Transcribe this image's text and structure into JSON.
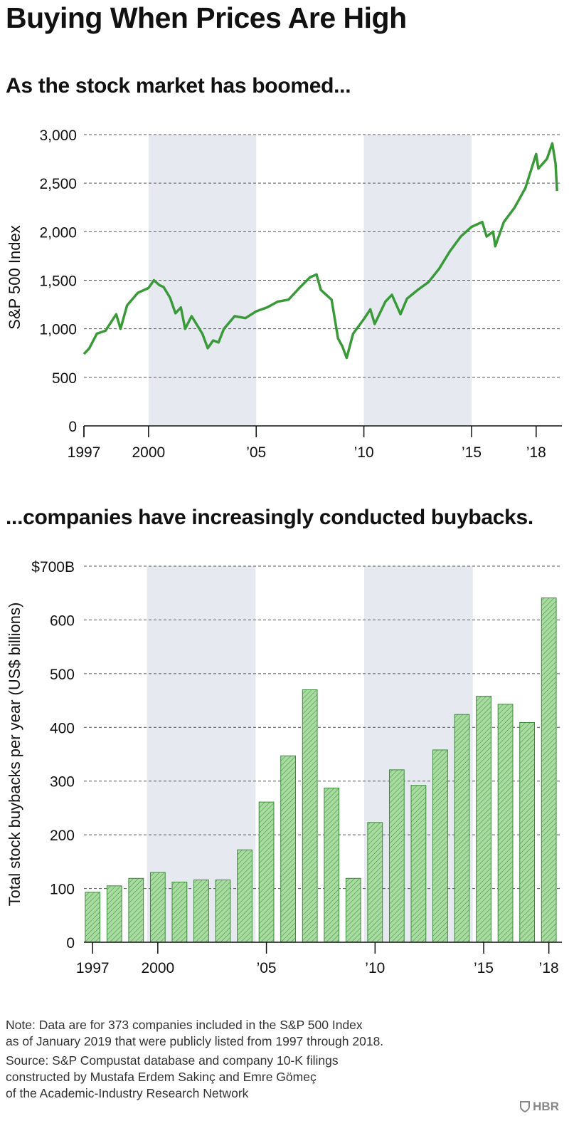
{
  "title": "Buying When Prices Are High",
  "subtitle_top": "As the stock market has boomed...",
  "subtitle_bottom": "...companies have increasingly conducted buybacks.",
  "colors": {
    "line": "#3a9a3a",
    "bar_fill": "#a8dba0",
    "bar_stroke": "#3c8a3c",
    "shade": "#e6eaf0",
    "grid": "#555555"
  },
  "shaded_periods": [
    [
      2000,
      2005
    ],
    [
      2010,
      2015
    ]
  ],
  "x_tick_labels": [
    "1997",
    "2000",
    "’05",
    "’10",
    "’15",
    "’18"
  ],
  "x_tick_years": [
    1997,
    2000,
    2005,
    2010,
    2015,
    2018
  ],
  "chart_data": [
    {
      "type": "line",
      "ylabel": "S&P 500 Index",
      "ylim": [
        0,
        3000
      ],
      "y_ticks": [
        0,
        500,
        1000,
        1500,
        2000,
        2500,
        3000
      ],
      "y_tick_labels": [
        "0",
        "500",
        "1,000",
        "1,500",
        "2,000",
        "2,500",
        "3,000"
      ],
      "grid": "dashed",
      "series": [
        {
          "x": [
            1997.0,
            1997.25,
            1997.6,
            1998.0,
            1998.5,
            1998.7,
            1999.0,
            1999.5,
            2000.0,
            2000.25,
            2000.5,
            2000.7,
            2001.0,
            2001.25,
            2001.5,
            2001.7,
            2002.0,
            2002.5,
            2002.75,
            2003.0,
            2003.25,
            2003.5,
            2004.0,
            2004.5,
            2005.0,
            2005.5,
            2006.0,
            2006.5,
            2007.0,
            2007.5,
            2007.8,
            2008.0,
            2008.5,
            2008.8,
            2009.0,
            2009.2,
            2009.5,
            2010.0,
            2010.3,
            2010.5,
            2011.0,
            2011.3,
            2011.7,
            2012.0,
            2012.5,
            2013.0,
            2013.5,
            2014.0,
            2014.5,
            2015.0,
            2015.5,
            2015.7,
            2016.0,
            2016.1,
            2016.5,
            2017.0,
            2017.5,
            2018.0,
            2018.1,
            2018.5,
            2018.75,
            2018.9,
            2018.97
          ],
          "values": [
            740,
            800,
            950,
            980,
            1150,
            1000,
            1240,
            1370,
            1420,
            1500,
            1450,
            1430,
            1320,
            1160,
            1220,
            1000,
            1130,
            950,
            800,
            880,
            860,
            1000,
            1130,
            1110,
            1180,
            1220,
            1280,
            1300,
            1420,
            1530,
            1560,
            1400,
            1300,
            900,
            820,
            700,
            950,
            1100,
            1200,
            1050,
            1280,
            1350,
            1150,
            1310,
            1400,
            1480,
            1620,
            1800,
            1950,
            2050,
            2100,
            1950,
            2000,
            1850,
            2100,
            2250,
            2450,
            2800,
            2650,
            2750,
            2910,
            2700,
            2420
          ]
        }
      ]
    },
    {
      "type": "bar",
      "ylabel": "Total stock buybacks per year (US$ billions)",
      "ylim": [
        0,
        700
      ],
      "y_ticks": [
        0,
        100,
        200,
        300,
        400,
        500,
        600,
        700
      ],
      "y_tick_labels": [
        "0",
        "100",
        "200",
        "300",
        "400",
        "500",
        "600",
        "$700B"
      ],
      "grid": "dashed",
      "categories": [
        "1997",
        "1998",
        "1999",
        "2000",
        "2001",
        "2002",
        "2003",
        "2004",
        "2005",
        "2006",
        "2007",
        "2008",
        "2009",
        "2010",
        "2011",
        "2012",
        "2013",
        "2014",
        "2015",
        "2016",
        "2017",
        "2018"
      ],
      "values": [
        93,
        105,
        119,
        130,
        112,
        116,
        116,
        172,
        261,
        347,
        470,
        287,
        119,
        223,
        321,
        292,
        358,
        424,
        458,
        443,
        409,
        641
      ]
    }
  ],
  "note": "Note: Data are for 373 companies included in the S&P 500 Index\nas of January 2019 that were publicly listed from 1997 through 2018.",
  "source": "Source: S&P Compustat database and company 10-K filings\nconstructed by Mustafa Erdem Sakinç and Emre Gömeç\nof the Academic-Industry Research Network",
  "brand": "HBR"
}
